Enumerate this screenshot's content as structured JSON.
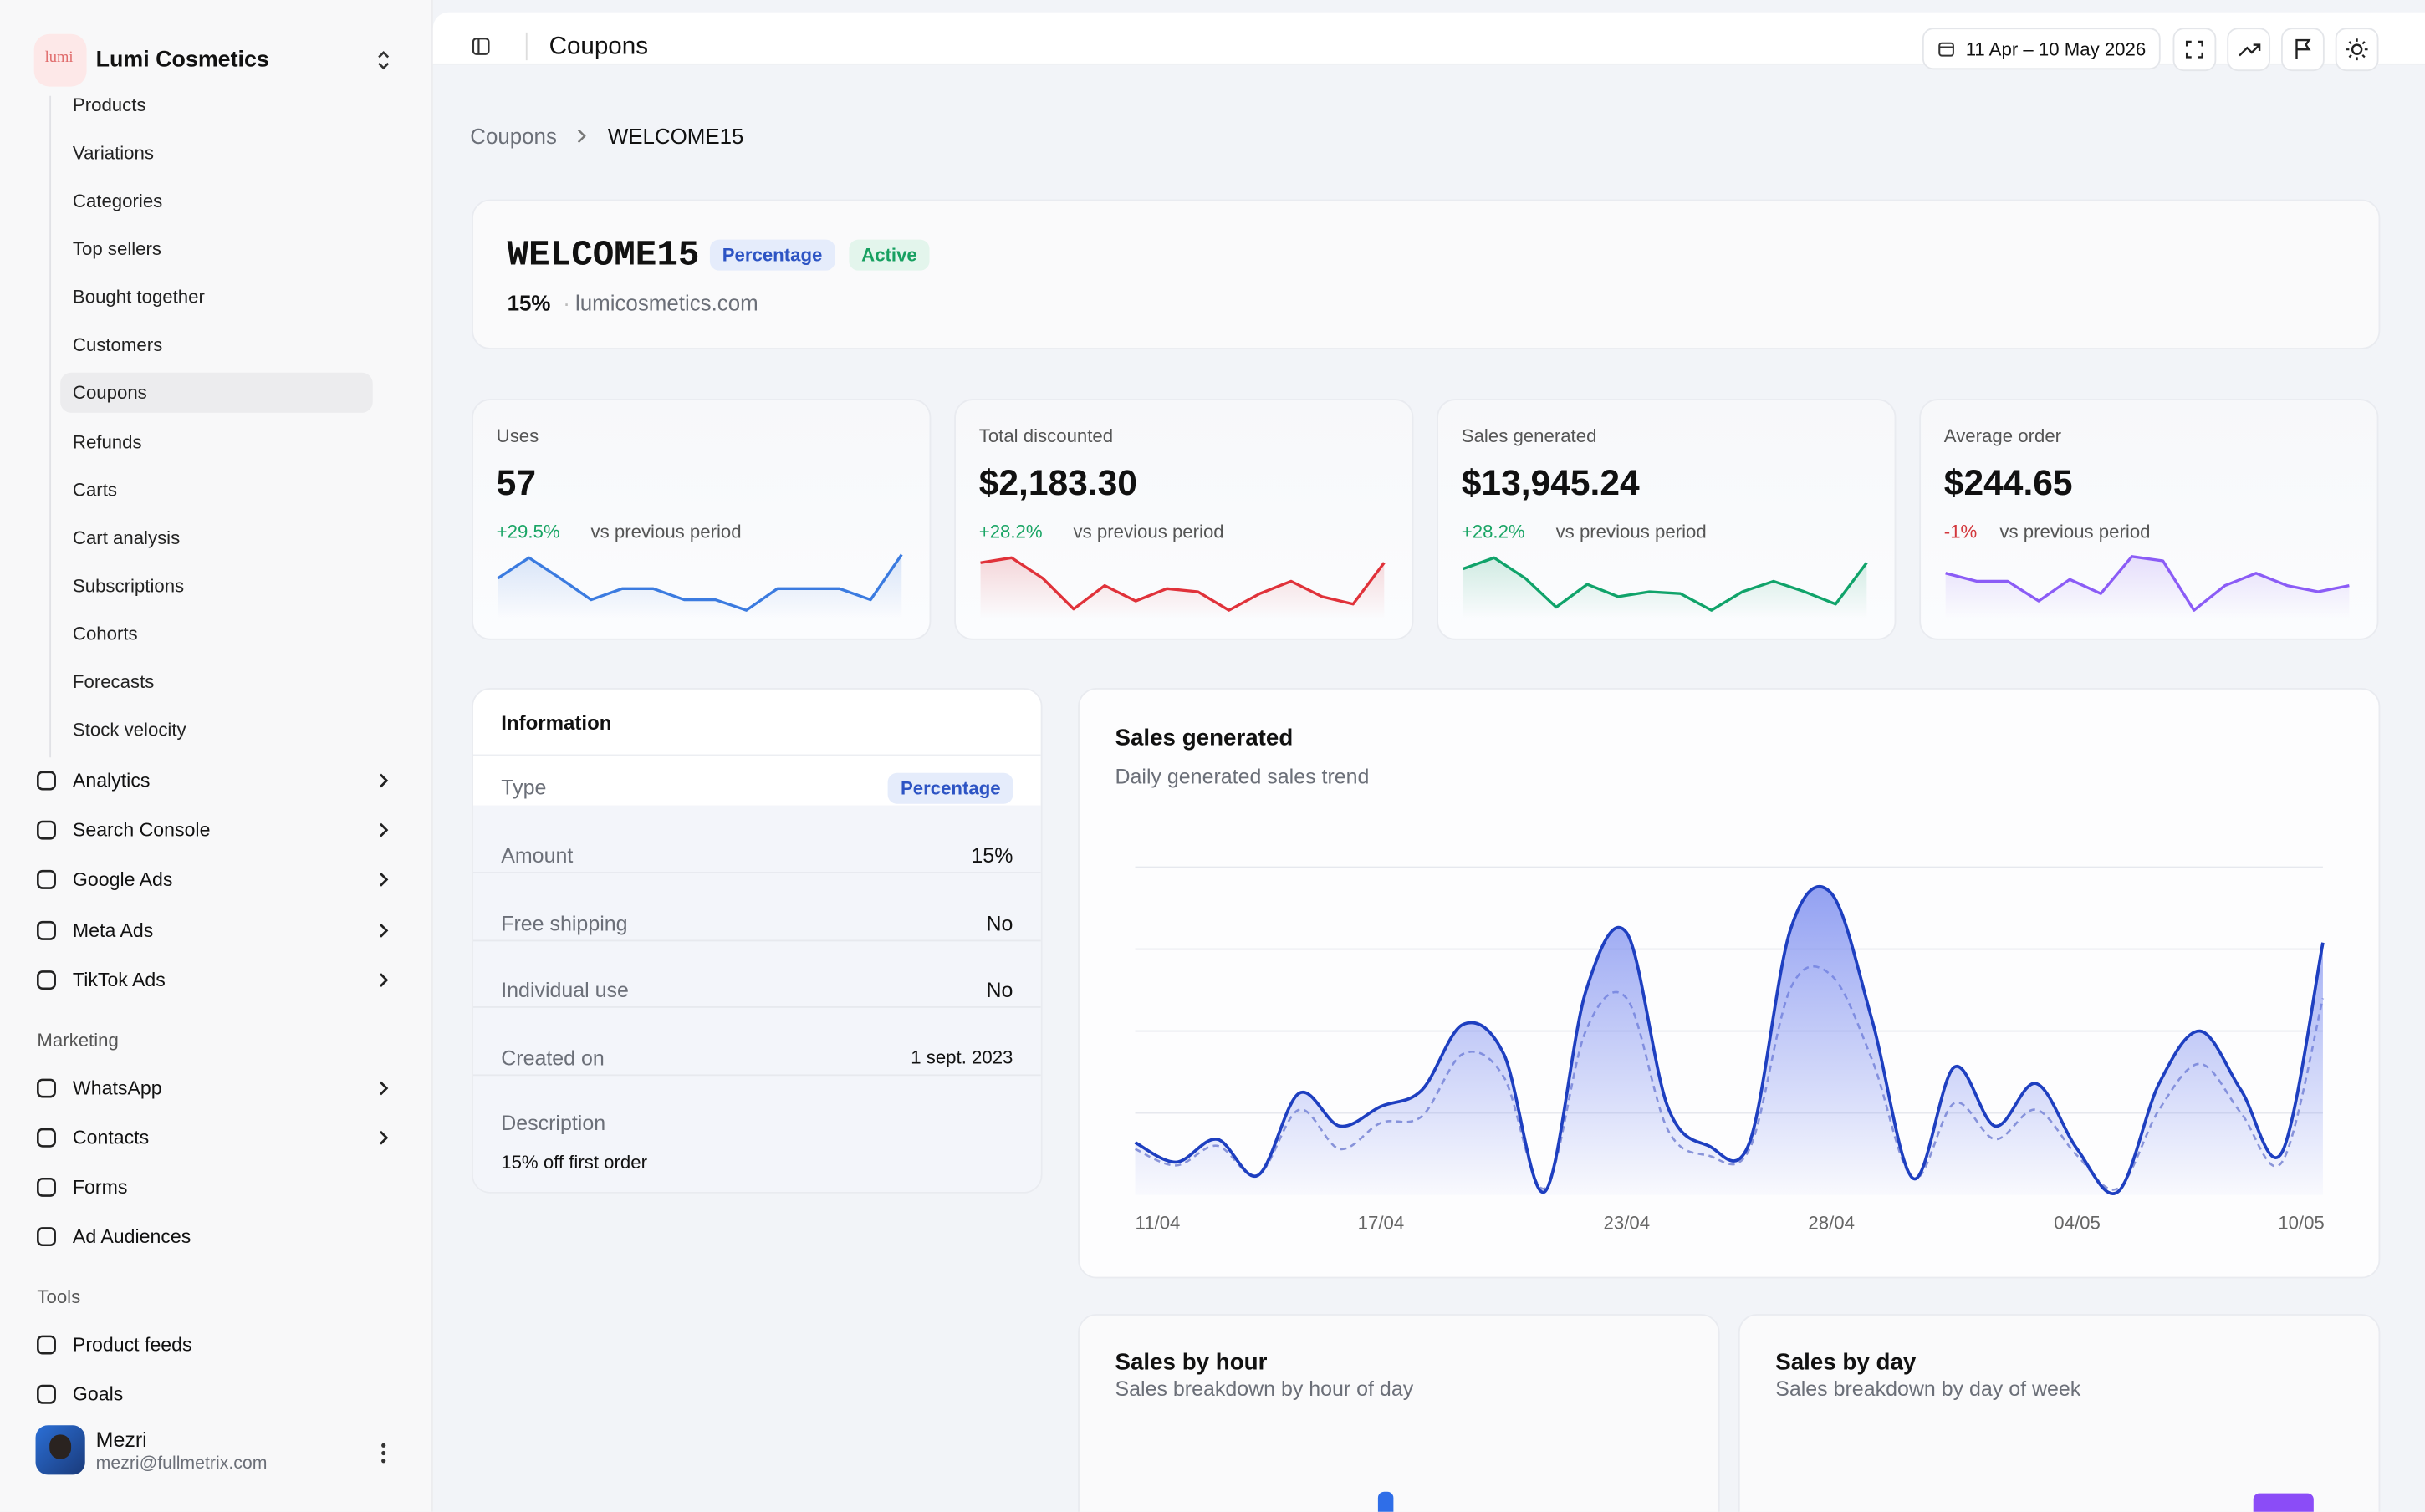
{
  "sidebar": {
    "brand": "Lumi Cosmetics",
    "logo": "lumi",
    "submenu": [
      "Products",
      "Variations",
      "Categories",
      "Top sellers",
      "Bought together",
      "Customers",
      "Coupons",
      "Refunds",
      "Carts",
      "Cart analysis",
      "Subscriptions",
      "Cohorts",
      "Forecasts",
      "Stock velocity"
    ],
    "nav": [
      "Analytics",
      "Search Console",
      "Google Ads",
      "Meta Ads",
      "TikTok Ads"
    ],
    "marketing": {
      "heading": "Marketing",
      "items": [
        "WhatsApp",
        "Contacts",
        "Forms",
        "Ad Audiences"
      ]
    },
    "tools": {
      "heading": "Tools",
      "items": [
        "Product feeds",
        "Goals"
      ]
    },
    "user": {
      "name": "Mezri",
      "email": "mezri@fullmetrix.com"
    }
  },
  "topbar": {
    "title": "Coupons",
    "date_range": "11 Apr – 10 May 2026"
  },
  "breadcrumb": [
    "Coupons",
    "WELCOME15"
  ],
  "coupon": {
    "code": "WELCOME15",
    "type_badge": "Percentage",
    "status_badge": "Active",
    "amount": "15%",
    "site": "lumicosmetics.com"
  },
  "stats": [
    {
      "label": "Uses",
      "value": "57",
      "delta": "+29.5%",
      "delta_text": "vs previous period",
      "spark": {
        "type": "line",
        "color": "#3b7be0",
        "ylim": [
          0,
          100
        ],
        "values": [
          55,
          88,
          55,
          20,
          38,
          38,
          20,
          20,
          3,
          38,
          38,
          38,
          20,
          93
        ]
      }
    },
    {
      "label": "Total discounted",
      "value": "$2,183.30",
      "delta": "+28.2%",
      "delta_text": "vs previous period",
      "spark": {
        "type": "line",
        "color": "#e0323a",
        "ylim": [
          0,
          100
        ],
        "values": [
          80,
          88,
          55,
          5,
          43,
          18,
          38,
          33,
          3,
          30,
          50,
          25,
          13,
          80
        ]
      }
    },
    {
      "label": "Sales generated",
      "value": "$13,945.24",
      "delta": "+28.2%",
      "delta_text": "vs previous period",
      "spark": {
        "type": "line",
        "color": "#10a36a",
        "ylim": [
          0,
          100
        ],
        "values": [
          70,
          88,
          55,
          8,
          45,
          25,
          33,
          30,
          3,
          33,
          50,
          33,
          13,
          80
        ]
      }
    },
    {
      "label": "Average order",
      "value": "$244.65",
      "delta": "-1%",
      "delta_text": "vs previous period",
      "spark": {
        "type": "line",
        "color": "#8b5cf6",
        "ylim": [
          0,
          100
        ],
        "values": [
          63,
          50,
          50,
          18,
          53,
          30,
          90,
          83,
          3,
          43,
          63,
          43,
          33,
          43
        ]
      }
    }
  ],
  "information": {
    "title": "Information",
    "type": {
      "label": "Type",
      "value": "Percentage"
    },
    "rows": [
      [
        "Amount",
        "15%"
      ],
      [
        "Free shipping",
        "No"
      ],
      [
        "Individual use",
        "No"
      ],
      [
        "Created on",
        "1 sept. 2023"
      ]
    ],
    "description": {
      "label": "Description",
      "value": "15% off first order"
    }
  },
  "chart_data": {
    "type": "line",
    "title": "Sales generated",
    "subtitle": "Daily generated sales trend",
    "categories": [
      "11/04",
      null,
      null,
      null,
      null,
      null,
      "17/04",
      null,
      null,
      null,
      null,
      null,
      "23/04",
      null,
      null,
      null,
      null,
      "28/04",
      null,
      null,
      null,
      null,
      null,
      "04/05",
      null,
      null,
      null,
      null,
      null,
      "10/05"
    ],
    "series": [
      {
        "color": "#1e3fc0",
        "style": "solid",
        "values": [
          16,
          10,
          17,
          6,
          31,
          21,
          27,
          32,
          52,
          43,
          1,
          62,
          80,
          27,
          15,
          16,
          81,
          92,
          53,
          5,
          39,
          21,
          34,
          14,
          1,
          34,
          50,
          32,
          13,
          77
        ]
      },
      {
        "color": "#8c96d6",
        "style": "dashed",
        "values": [
          14,
          9,
          15,
          6,
          26,
          14,
          22,
          24,
          43,
          36,
          2,
          50,
          60,
          20,
          12,
          14,
          63,
          67,
          41,
          5,
          28,
          17,
          26,
          12,
          2,
          26,
          40,
          25,
          10,
          60
        ]
      }
    ],
    "ylim": [
      0,
      100
    ],
    "gridlines": [
      25,
      50,
      75,
      100
    ],
    "grid": true,
    "smooth": true
  },
  "panels": [
    {
      "title": "Sales by hour",
      "subtitle": "Sales breakdown by hour of day"
    },
    {
      "title": "Sales by day",
      "subtitle": "Sales breakdown by day of week"
    }
  ]
}
